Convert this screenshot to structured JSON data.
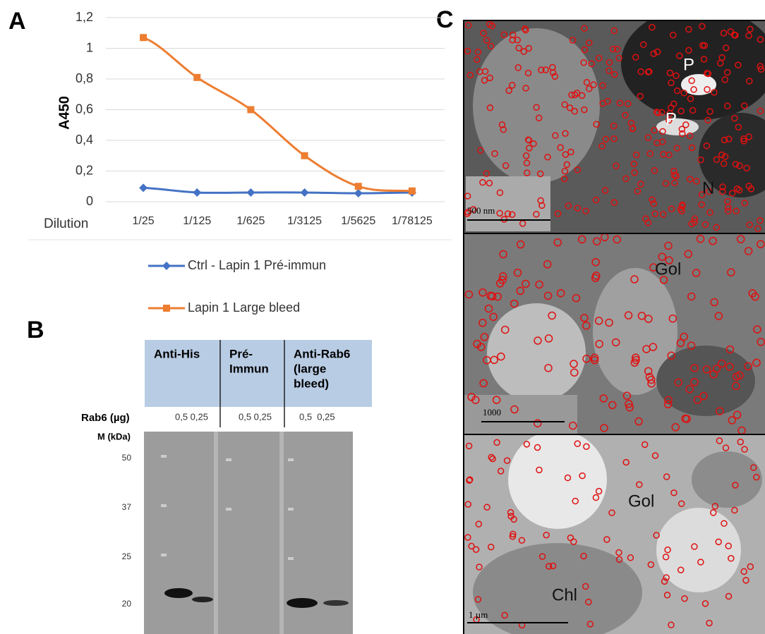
{
  "panel_labels": [
    "A",
    "B",
    "C"
  ],
  "chart_data": {
    "type": "line",
    "x_label": "Dilution",
    "y_label": "A450",
    "categories": [
      "1/25",
      "1/125",
      "1/625",
      "1/3125",
      "1/5625",
      "1/78125"
    ],
    "series": [
      {
        "name": "Ctrl - Lapin 1 Pré-immun",
        "color": "#4472c4",
        "marker": "diamond",
        "values": [
          0.09,
          0.06,
          0.06,
          0.06,
          0.055,
          0.06
        ]
      },
      {
        "name": "Lapin 1 Large bleed",
        "color": "#ed7d31",
        "marker": "square",
        "values": [
          1.07,
          0.81,
          0.6,
          0.3,
          0.1,
          0.07
        ]
      }
    ],
    "ylim": [
      0,
      1.2
    ],
    "yticks": [
      0,
      {
        "value": 0.2,
        "label": "0,2"
      },
      {
        "value": 0.4,
        "label": "0,4"
      },
      {
        "value": 0.6,
        "label": "0,6"
      },
      {
        "value": 0.8,
        "label": "0,8"
      },
      1,
      {
        "value": 1.2,
        "label": "1,2"
      }
    ],
    "grid": true
  },
  "blot": {
    "headers": [
      [
        "Anti-His"
      ],
      [
        "Pré-",
        "Immun"
      ],
      [
        "Anti-Rab6",
        "(large",
        "bleed)"
      ]
    ],
    "amount_label": "Rab6 (µg)",
    "amounts": [
      "0,5 0,25",
      "0,5 0,25",
      "0,5  0,25"
    ],
    "marker_label": "M (kDa)",
    "markers": [
      "50",
      "37",
      "25",
      "20"
    ]
  },
  "micrographs": [
    {
      "labels": [
        "P",
        "P",
        "N"
      ],
      "scale": "500 nm"
    },
    {
      "labels": [
        "Gol"
      ],
      "scale": "1000"
    },
    {
      "labels": [
        "Gol",
        "Chl"
      ],
      "scale": "1 µm"
    }
  ]
}
